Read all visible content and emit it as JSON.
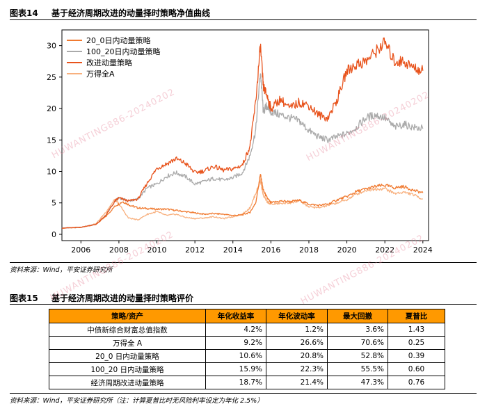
{
  "figure1": {
    "number": "图表14",
    "title": "基于经济周期改进的动量择时策略净值曲线",
    "source": "资料来源：Wind，平安证券研究所"
  },
  "figure2": {
    "number": "图表15",
    "title": "基于经济周期改进的动量择时策略评价",
    "source": "资料来源：Wind，平安证券研究所（注：计算夏普比时无风险利率设定为年化 2.5%）",
    "table": {
      "headers": [
        "策略/资产",
        "年化收益率",
        "年化波动率",
        "最大回撤",
        "夏普比"
      ],
      "rows": [
        [
          "中债新综合财富总值指数",
          "4.2%",
          "1.2%",
          "3.6%",
          "1.43"
        ],
        [
          "万得全 A",
          "9.2%",
          "26.6%",
          "70.6%",
          "0.25"
        ],
        [
          "20_0 日内动量策略",
          "10.6%",
          "20.8%",
          "52.8%",
          "0.39"
        ],
        [
          "100_20 日内动量策略",
          "15.9%",
          "22.3%",
          "55.5%",
          "0.60"
        ],
        [
          "经济周期改进动量策略",
          "18.7%",
          "21.4%",
          "47.3%",
          "0.76"
        ]
      ]
    }
  },
  "watermark": {
    "text": "HUWANTING886-20240202"
  },
  "colors": {
    "series_20_0": "#f07a30",
    "series_100_20": "#aaaaaa",
    "series_improved": "#e8531c",
    "series_wind": "#f8b07e",
    "table_header": "#ff9900"
  },
  "chart_data": {
    "type": "line",
    "title": "",
    "xlabel": "",
    "ylabel": "",
    "xlim": [
      2005.0,
      2024.3
    ],
    "ylim": [
      -1,
      32.5
    ],
    "xticks": [
      "2006",
      "2008",
      "2010",
      "2012",
      "2014",
      "2016",
      "2018",
      "2020",
      "2022",
      "2024"
    ],
    "yticks": [
      "0",
      "5",
      "10",
      "15",
      "20",
      "25",
      "30"
    ],
    "legend_position": "top-left",
    "series": [
      {
        "name": "20_0日内动量策略",
        "color_key": "series_20_0",
        "x": [
          2005.0,
          2006.0,
          2006.8,
          2007.3,
          2007.8,
          2008.2,
          2008.6,
          2009.0,
          2009.5,
          2010.0,
          2010.5,
          2011.0,
          2011.5,
          2012.0,
          2012.5,
          2013.0,
          2013.5,
          2014.0,
          2014.5,
          2014.9,
          2015.2,
          2015.45,
          2015.6,
          2015.8,
          2016.0,
          2016.5,
          2017.0,
          2017.5,
          2018.0,
          2018.5,
          2019.0,
          2019.5,
          2020.0,
          2020.5,
          2021.0,
          2021.5,
          2022.0,
          2022.5,
          2023.0,
          2023.5,
          2024.0
        ],
        "values": [
          1.0,
          1.1,
          1.6,
          2.8,
          4.5,
          5.2,
          4.6,
          4.2,
          4.1,
          4.0,
          4.0,
          3.8,
          3.6,
          3.4,
          3.2,
          3.3,
          3.2,
          3.0,
          3.1,
          3.5,
          5.0,
          9.5,
          7.0,
          5.8,
          5.0,
          5.3,
          5.2,
          5.4,
          4.8,
          4.6,
          4.8,
          5.5,
          6.0,
          6.8,
          7.2,
          7.6,
          7.8,
          7.4,
          7.6,
          7.0,
          6.6
        ]
      },
      {
        "name": "100_20日内动量策略",
        "color_key": "series_100_20",
        "x": [
          2005.0,
          2006.0,
          2006.8,
          2007.3,
          2007.8,
          2008.0,
          2008.5,
          2009.0,
          2009.5,
          2010.0,
          2010.5,
          2011.0,
          2011.5,
          2012.0,
          2012.5,
          2013.0,
          2013.5,
          2014.0,
          2014.5,
          2014.9,
          2015.2,
          2015.45,
          2015.6,
          2015.8,
          2016.0,
          2016.5,
          2017.0,
          2017.5,
          2018.0,
          2018.5,
          2019.0,
          2019.5,
          2020.0,
          2020.5,
          2021.0,
          2021.5,
          2022.0,
          2022.5,
          2023.0,
          2023.5,
          2024.0
        ],
        "values": [
          1.0,
          1.1,
          1.6,
          3.0,
          5.3,
          5.8,
          5.3,
          5.6,
          7.4,
          8.0,
          9.2,
          9.8,
          9.2,
          8.0,
          8.4,
          8.9,
          8.6,
          9.0,
          9.8,
          12.5,
          16.5,
          26.0,
          19.5,
          20.5,
          19.5,
          19.0,
          18.5,
          18.0,
          16.5,
          15.5,
          15.0,
          15.5,
          16.0,
          17.0,
          18.5,
          19.0,
          18.5,
          17.0,
          17.5,
          17.0,
          16.8
        ]
      },
      {
        "name": "改进动量策略",
        "color_key": "series_improved",
        "x": [
          2005.0,
          2006.0,
          2006.8,
          2007.3,
          2007.8,
          2008.0,
          2008.5,
          2009.0,
          2009.5,
          2010.0,
          2010.5,
          2011.0,
          2011.5,
          2012.0,
          2012.5,
          2013.0,
          2013.5,
          2014.0,
          2014.5,
          2014.9,
          2015.2,
          2015.45,
          2015.6,
          2015.8,
          2016.0,
          2016.5,
          2017.0,
          2017.5,
          2018.0,
          2018.5,
          2019.0,
          2019.5,
          2020.0,
          2020.5,
          2021.0,
          2021.5,
          2022.0,
          2022.5,
          2023.0,
          2023.5,
          2024.0
        ],
        "values": [
          1.0,
          1.1,
          1.6,
          3.0,
          5.3,
          5.8,
          5.3,
          5.6,
          8.2,
          10.5,
          11.2,
          12.0,
          11.3,
          9.8,
          10.1,
          10.8,
          10.2,
          10.4,
          11.0,
          14.0,
          21.0,
          30.0,
          23.5,
          22.0,
          20.0,
          21.5,
          20.0,
          21.0,
          20.5,
          19.0,
          18.5,
          21.5,
          26.0,
          27.0,
          27.5,
          29.0,
          30.5,
          27.5,
          27.5,
          26.5,
          26.0
        ]
      },
      {
        "name": "万得全A",
        "color_key": "series_wind",
        "x": [
          2005.0,
          2006.0,
          2006.8,
          2007.3,
          2007.8,
          2008.0,
          2008.5,
          2009.0,
          2009.5,
          2010.0,
          2010.5,
          2011.0,
          2011.5,
          2012.0,
          2012.5,
          2013.0,
          2013.5,
          2014.0,
          2014.5,
          2014.9,
          2015.2,
          2015.45,
          2015.6,
          2015.8,
          2016.0,
          2016.5,
          2017.0,
          2017.5,
          2018.0,
          2018.5,
          2019.0,
          2019.5,
          2020.0,
          2020.5,
          2021.0,
          2021.5,
          2022.0,
          2022.5,
          2023.0,
          2023.5,
          2024.0
        ],
        "values": [
          1.0,
          1.1,
          1.7,
          3.5,
          5.6,
          4.8,
          2.6,
          2.3,
          3.2,
          3.6,
          3.0,
          3.2,
          2.7,
          2.5,
          2.6,
          2.8,
          2.5,
          2.8,
          3.2,
          4.2,
          6.5,
          8.5,
          6.2,
          5.2,
          4.8,
          4.9,
          5.0,
          5.3,
          4.4,
          4.2,
          4.6,
          5.0,
          5.5,
          6.4,
          7.0,
          7.2,
          7.3,
          6.5,
          6.7,
          6.3,
          5.6
        ]
      }
    ]
  }
}
